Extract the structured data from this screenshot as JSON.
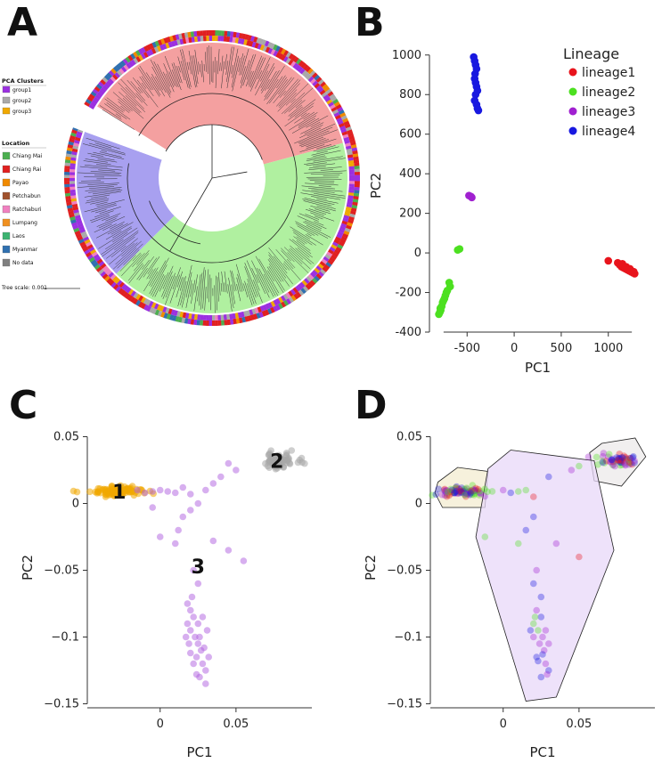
{
  "panels": {
    "A": "A",
    "B": "B",
    "C": "C",
    "D": "D"
  },
  "tree": {
    "pca_clusters_title": "PCA Clusters",
    "pca_clusters": [
      {
        "label": "group1",
        "color": "#9b30e0"
      },
      {
        "label": "group2",
        "color": "#a9a9a9"
      },
      {
        "label": "group3",
        "color": "#f0a800"
      }
    ],
    "location_title": "Location",
    "locations": [
      {
        "label": "Chiang Mai",
        "color": "#4caf50"
      },
      {
        "label": "Chiang Rai",
        "color": "#e02020"
      },
      {
        "label": "Payao",
        "color": "#f08a00"
      },
      {
        "label": "Petchabun",
        "color": "#a0522d"
      },
      {
        "label": "Ratchaburi",
        "color": "#f080c0"
      },
      {
        "label": "Lumpang",
        "color": "#f09020"
      },
      {
        "label": "Laos",
        "color": "#3cb371"
      },
      {
        "label": "Myanmar",
        "color": "#3070b0"
      },
      {
        "label": "No data",
        "color": "#808080"
      }
    ],
    "tree_scale_label": "Tree scale: 0.001",
    "clade_colors": {
      "red": "#f4a0a0",
      "green": "#b0f0a0",
      "blue": "#a8a0f0"
    }
  },
  "chart_data": [
    {
      "panel": "B",
      "type": "scatter",
      "xlabel": "PC1",
      "ylabel": "PC2",
      "xlim": [
        -900,
        1400
      ],
      "ylim": [
        -400,
        1080
      ],
      "xticks": [
        -500,
        0,
        500,
        1000
      ],
      "yticks": [
        -400,
        -200,
        0,
        200,
        400,
        600,
        800,
        1000
      ],
      "legend_title": "Lineage",
      "legend_position": "top-right",
      "series": [
        {
          "name": "lineage1",
          "color": "#e8141c",
          "points": [
            [
              1000,
              -40
            ],
            [
              1100,
              -50
            ],
            [
              1120,
              -60
            ],
            [
              1140,
              -70
            ],
            [
              1160,
              -75
            ],
            [
              1180,
              -80
            ],
            [
              1200,
              -85
            ],
            [
              1220,
              -90
            ],
            [
              1240,
              -95
            ],
            [
              1260,
              -100
            ],
            [
              1280,
              -105
            ],
            [
              1150,
              -55
            ],
            [
              1190,
              -70
            ],
            [
              1230,
              -80
            ],
            [
              1270,
              -95
            ]
          ]
        },
        {
          "name": "lineage2",
          "color": "#4ce020",
          "points": [
            [
              -600,
              15
            ],
            [
              -580,
              20
            ],
            [
              -690,
              -150
            ],
            [
              -680,
              -170
            ],
            [
              -720,
              -200
            ],
            [
              -740,
              -230
            ],
            [
              -760,
              -250
            ],
            [
              -770,
              -270
            ],
            [
              -780,
              -290
            ],
            [
              -790,
              -300
            ],
            [
              -800,
              -310
            ],
            [
              -750,
              -240
            ],
            [
              -730,
              -215
            ],
            [
              -710,
              -190
            ],
            [
              -785,
              -280
            ]
          ]
        },
        {
          "name": "lineage3",
          "color": "#a020d0",
          "points": [
            [
              -480,
              290
            ],
            [
              -460,
              285
            ],
            [
              -450,
              280
            ]
          ]
        },
        {
          "name": "lineage4",
          "color": "#1818e0",
          "points": [
            [
              -430,
              990
            ],
            [
              -420,
              970
            ],
            [
              -410,
              950
            ],
            [
              -400,
              930
            ],
            [
              -420,
              880
            ],
            [
              -410,
              860
            ],
            [
              -400,
              840
            ],
            [
              -390,
              820
            ],
            [
              -410,
              800
            ],
            [
              -420,
              770
            ],
            [
              -400,
              750
            ],
            [
              -390,
              730
            ],
            [
              -380,
              720
            ],
            [
              -415,
              905
            ]
          ]
        }
      ]
    },
    {
      "panel": "C",
      "type": "scatter",
      "xlabel": "PC1",
      "ylabel": "PC2",
      "xlim": [
        -0.048,
        0.1
      ],
      "ylim": [
        -0.153,
        0.057
      ],
      "xticks": [
        0,
        0.05
      ],
      "yticks": [
        0.05,
        0,
        -0.05,
        -0.1,
        -0.15
      ],
      "tick_labels_x": [
        "0",
        "0.05"
      ],
      "tick_labels_y": [
        "0.05",
        "0",
        "−0.05",
        "−0.1",
        "−0.15"
      ],
      "cluster_labels": [
        {
          "text": "1",
          "x": -0.027,
          "y": 0.009
        },
        {
          "text": "2",
          "x": 0.077,
          "y": 0.032
        },
        {
          "text": "3",
          "x": 0.025,
          "y": -0.047
        }
      ],
      "series": [
        {
          "color": "#f0a800",
          "spread": "cluster1",
          "center": [
            -0.027,
            0.009
          ],
          "n": 90
        },
        {
          "color": "#a8a8a8",
          "spread": "cluster2",
          "center": [
            0.075,
            0.032
          ],
          "n": 70
        },
        {
          "color": "#b060e0",
          "points": [
            [
              -0.015,
              0.01
            ],
            [
              -0.01,
              0.008
            ],
            [
              -0.005,
              0.009
            ],
            [
              0,
              0.01
            ],
            [
              0.005,
              0.009
            ],
            [
              0.01,
              0.008
            ],
            [
              0.015,
              0.012
            ],
            [
              0.02,
              0.007
            ],
            [
              0.03,
              0.01
            ],
            [
              0.04,
              0.02
            ],
            [
              0.05,
              0.025
            ],
            [
              0.045,
              0.03
            ],
            [
              0.035,
              0.015
            ],
            [
              0.025,
              0.0
            ],
            [
              0.02,
              -0.005
            ],
            [
              0.015,
              -0.01
            ],
            [
              0.012,
              -0.02
            ],
            [
              0.01,
              -0.03
            ],
            [
              -0.005,
              -0.003
            ],
            [
              0.0,
              -0.025
            ],
            [
              0.035,
              -0.028
            ],
            [
              0.045,
              -0.035
            ],
            [
              0.055,
              -0.043
            ],
            [
              0.022,
              -0.05
            ],
            [
              0.025,
              -0.06
            ],
            [
              0.018,
              -0.075
            ],
            [
              0.02,
              -0.08
            ],
            [
              0.022,
              -0.085
            ],
            [
              0.025,
              -0.09
            ],
            [
              0.02,
              -0.095
            ],
            [
              0.023,
              -0.1
            ],
            [
              0.025,
              -0.105
            ],
            [
              0.027,
              -0.11
            ],
            [
              0.024,
              -0.115
            ],
            [
              0.028,
              -0.12
            ],
            [
              0.03,
              -0.125
            ],
            [
              0.026,
              -0.13
            ],
            [
              0.03,
              -0.135
            ],
            [
              0.022,
              -0.12
            ],
            [
              0.019,
              -0.105
            ],
            [
              0.031,
              -0.095
            ],
            [
              0.018,
              -0.09
            ],
            [
              0.028,
              -0.085
            ],
            [
              0.021,
              -0.07
            ],
            [
              0.026,
              -0.1
            ],
            [
              0.024,
              -0.128
            ],
            [
              0.032,
              -0.115
            ],
            [
              0.017,
              -0.1
            ],
            [
              0.029,
              -0.108
            ],
            [
              0.02,
              -0.112
            ]
          ]
        }
      ]
    },
    {
      "panel": "D",
      "type": "scatter",
      "xlabel": "PC1",
      "ylabel": "PC2",
      "xlim": [
        -0.048,
        0.1
      ],
      "ylim": [
        -0.153,
        0.057
      ],
      "xticks": [
        0,
        0.05
      ],
      "yticks": [
        0.05,
        0,
        -0.05,
        -0.1,
        -0.15
      ],
      "tick_labels_x": [
        "0",
        "0.05"
      ],
      "tick_labels_y": [
        "0.05",
        "0",
        "−0.05",
        "−0.1",
        "−0.15"
      ],
      "hulls": [
        {
          "fill": "#f3ecd0",
          "points": [
            [
              -0.043,
              0.016
            ],
            [
              -0.03,
              0.027
            ],
            [
              -0.01,
              0.024
            ],
            [
              -0.012,
              -0.003
            ],
            [
              -0.04,
              -0.003
            ],
            [
              -0.045,
              0.008
            ]
          ]
        },
        {
          "fill": "#eceaea",
          "points": [
            [
              0.057,
              0.038
            ],
            [
              0.065,
              0.045
            ],
            [
              0.087,
              0.049
            ],
            [
              0.094,
              0.035
            ],
            [
              0.078,
              0.013
            ],
            [
              0.06,
              0.017
            ]
          ]
        },
        {
          "fill": "#e8d8f8",
          "points": [
            [
              0.005,
              0.04
            ],
            [
              0.06,
              0.032
            ],
            [
              0.073,
              -0.035
            ],
            [
              0.035,
              -0.145
            ],
            [
              0.015,
              -0.148
            ],
            [
              -0.018,
              -0.025
            ],
            [
              -0.01,
              0.026
            ]
          ]
        }
      ],
      "point_colors": [
        "#e8141c",
        "#4ce020",
        "#a020d0",
        "#1818e0"
      ]
    }
  ]
}
